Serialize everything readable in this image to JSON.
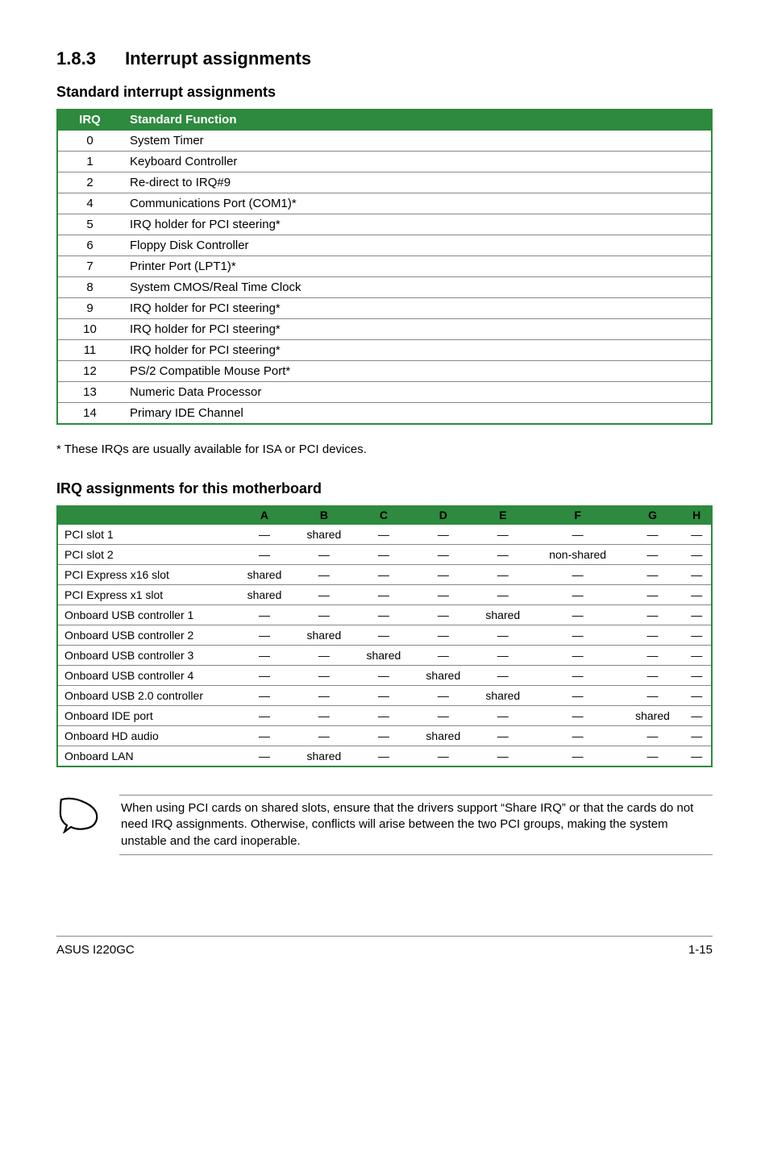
{
  "heading": {
    "number": "1.8.3",
    "title": "Interrupt assignments"
  },
  "sub1": "Standard interrupt assignments",
  "table1": {
    "cols": [
      "IRQ",
      "Standard Function"
    ],
    "rows": [
      [
        "0",
        "System Timer"
      ],
      [
        "1",
        "Keyboard Controller"
      ],
      [
        "2",
        "Re-direct to IRQ#9"
      ],
      [
        "4",
        "Communications Port (COM1)*"
      ],
      [
        "5",
        "IRQ holder for PCI steering*"
      ],
      [
        "6",
        "Floppy Disk Controller"
      ],
      [
        "7",
        "Printer Port (LPT1)*"
      ],
      [
        "8",
        "System CMOS/Real Time Clock"
      ],
      [
        "9",
        "IRQ holder for PCI steering*"
      ],
      [
        "10",
        "IRQ holder for PCI steering*"
      ],
      [
        "11",
        "IRQ holder for PCI steering*"
      ],
      [
        "12",
        "PS/2 Compatible Mouse Port*"
      ],
      [
        "13",
        "Numeric Data Processor"
      ],
      [
        "14",
        "Primary IDE Channel"
      ]
    ]
  },
  "footnote": "* These IRQs are usually available for ISA or PCI devices.",
  "sub2": "IRQ assignments for this motherboard",
  "table2": {
    "cols": [
      "",
      "A",
      "B",
      "C",
      "D",
      "E",
      "F",
      "G",
      "H"
    ],
    "rows": [
      [
        "PCI slot 1",
        "—",
        "shared",
        "—",
        "—",
        "—",
        "—",
        "—",
        "—"
      ],
      [
        "PCI slot 2",
        "—",
        "—",
        "—",
        "—",
        "—",
        "non-shared",
        "—",
        "—"
      ],
      [
        "PCI Express x16 slot",
        "shared",
        "—",
        "—",
        "—",
        "—",
        "—",
        "—",
        "—"
      ],
      [
        "PCI Express x1 slot",
        "shared",
        "—",
        "—",
        "—",
        "—",
        "—",
        "—",
        "—"
      ],
      [
        "Onboard USB controller 1",
        "—",
        "—",
        "—",
        "—",
        "shared",
        "—",
        "—",
        "—"
      ],
      [
        "Onboard USB controller 2",
        "—",
        "shared",
        "—",
        "—",
        "—",
        "—",
        "—",
        "—"
      ],
      [
        "Onboard USB controller 3",
        "—",
        "—",
        "shared",
        "—",
        "—",
        "—",
        "—",
        "—"
      ],
      [
        "Onboard USB controller 4",
        "—",
        "—",
        "—",
        "shared",
        "—",
        "—",
        "—",
        "—"
      ],
      [
        "Onboard USB 2.0 controller",
        "—",
        "—",
        "—",
        "—",
        "shared",
        "—",
        "—",
        "—"
      ],
      [
        "Onboard IDE port",
        "—",
        "—",
        "—",
        "—",
        "—",
        "—",
        "shared",
        "—"
      ],
      [
        "Onboard HD audio",
        "—",
        "—",
        "—",
        "shared",
        "—",
        "—",
        "—",
        "—"
      ],
      [
        "Onboard LAN",
        "—",
        "shared",
        "—",
        "—",
        "—",
        "—",
        "—",
        "—"
      ]
    ]
  },
  "note": "When using PCI cards on shared slots, ensure that the drivers support “Share IRQ” or that the cards do not need IRQ assignments. Otherwise, conflicts will arise between the two PCI groups, making the system unstable and the card inoperable.",
  "footer": {
    "left": "ASUS I220GC",
    "right": "1-15"
  },
  "colors": {
    "header_bg": "#2d8a3e",
    "header_fg_white": "#ffffff",
    "header_fg_black": "#000000",
    "row_border": "#888888"
  }
}
